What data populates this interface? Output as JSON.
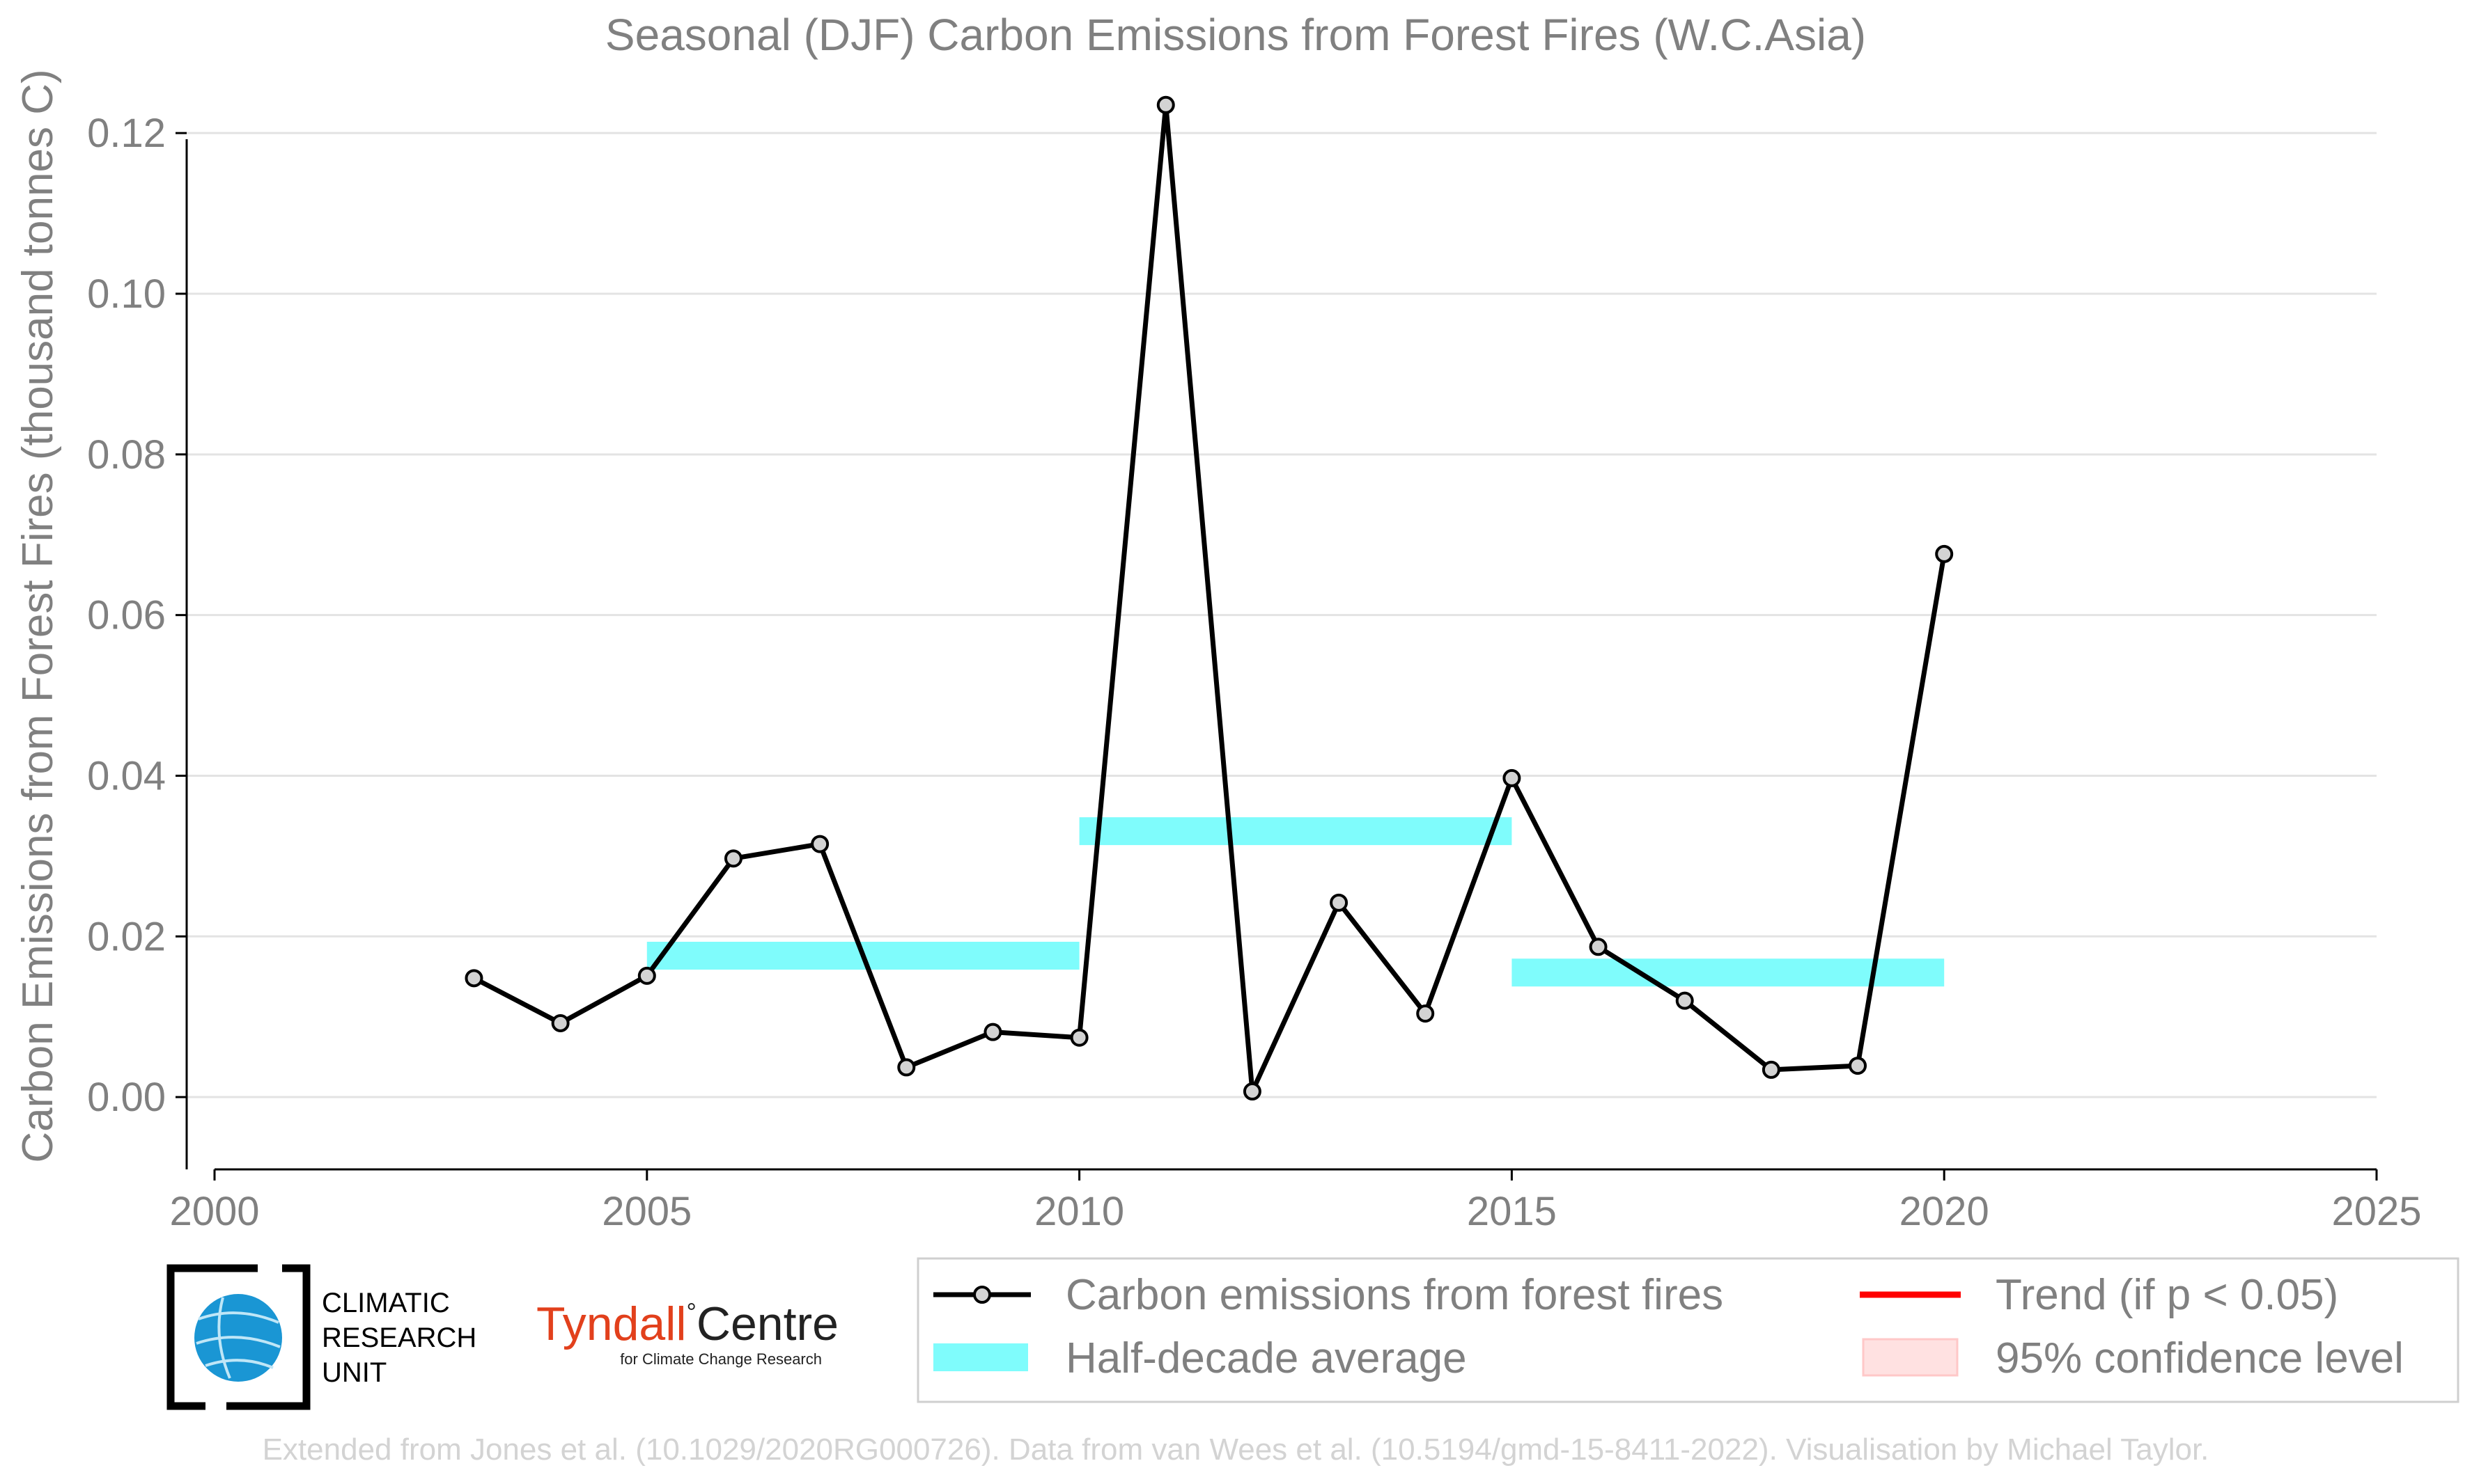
{
  "chart_data": {
    "type": "line",
    "title": "Seasonal (DJF) Carbon Emissions from Forest Fires (W.C.Asia)",
    "xlabel": "",
    "ylabel": "Carbon Emissions from Forest Fires (thousand tonnes C)",
    "xlim": [
      2000,
      2025
    ],
    "ylim": [
      -0.009,
      0.124
    ],
    "x_ticks": [
      2000,
      2005,
      2010,
      2015,
      2020,
      2025
    ],
    "y_ticks": [
      0.0,
      0.02,
      0.04,
      0.06,
      0.08,
      0.1,
      0.12
    ],
    "y_tick_labels": [
      "0.00",
      "0.02",
      "0.04",
      "0.06",
      "0.08",
      "0.10",
      "0.12"
    ],
    "grid": "horizontal",
    "series": [
      {
        "name": "Carbon emissions from forest fires",
        "color": "#000000",
        "marker_fill": "#d3d3d3",
        "x": [
          2003,
          2004,
          2005,
          2006,
          2007,
          2008,
          2009,
          2010,
          2011,
          2012,
          2013,
          2014,
          2015,
          2016,
          2017,
          2018,
          2019,
          2020
        ],
        "y": [
          0.0148,
          0.0092,
          0.0151,
          0.0297,
          0.0315,
          0.0037,
          0.0081,
          0.0074,
          0.1235,
          0.0007,
          0.0242,
          0.0104,
          0.0397,
          0.0187,
          0.012,
          0.0034,
          0.0039,
          0.0676
        ]
      }
    ],
    "half_decade_average": {
      "name": "Half-decade average",
      "color": "#7ffcfc",
      "segments": [
        {
          "x_start": 2005,
          "x_end": 2010,
          "y": 0.0176
        },
        {
          "x_start": 2010,
          "x_end": 2015,
          "y": 0.0331
        },
        {
          "x_start": 2015,
          "x_end": 2020,
          "y": 0.0155
        }
      ]
    },
    "legend": {
      "placement": "bottom-right",
      "entries": [
        {
          "label": "Carbon emissions from forest fires",
          "kind": "line-marker",
          "color": "#000000"
        },
        {
          "label": "Trend (if p < 0.05)",
          "kind": "line",
          "color": "#ff0000"
        },
        {
          "label": "Half-decade average",
          "kind": "band",
          "color": "#7ffcfc"
        },
        {
          "label": "95% confidence level",
          "kind": "patch",
          "color": "#ffe1e1"
        }
      ]
    }
  },
  "logos": {
    "cru_lines": [
      "CLIMATIC",
      "RESEARCH",
      "UNIT"
    ],
    "tyndall_main": "Tyndall",
    "tyndall_degree": "°",
    "tyndall_centre": "Centre",
    "tyndall_sub": "for Climate Change Research"
  },
  "credit": "Extended from Jones et al. (10.1029/2020RG000726). Data from van Wees et al. (10.5194/gmd-15-8411-2022). Visualisation by Michael Taylor."
}
